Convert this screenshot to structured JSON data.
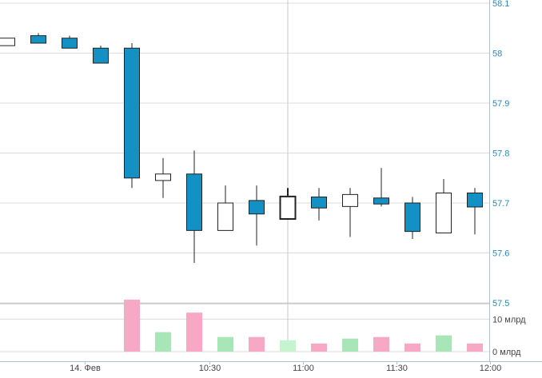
{
  "colors": {
    "up_fill": "#ffffff",
    "down_fill": "#1390c4",
    "candle_stroke": "#222222",
    "wick": "#222222",
    "vol_down": "#f7a8c4",
    "vol_up": "#a8e6b8",
    "vol_up_light": "#c4f5d0",
    "price_axis_text": "#2f86b8",
    "grid": "#dcdcdc",
    "axis_line": "#a9c4d6",
    "crosshair": "#c8c8c8"
  },
  "chart_data": {
    "type": "candlestick",
    "price_axis": {
      "ylim": [
        57.5,
        58.1
      ],
      "ticks": [
        "58.1",
        "58",
        "57.9",
        "57.8",
        "57.7",
        "57.6",
        "57.5"
      ],
      "tick_values": [
        58.1,
        58.0,
        57.9,
        57.8,
        57.7,
        57.6,
        57.5
      ]
    },
    "volume_axis": {
      "ylim": [
        0,
        15
      ],
      "unit": "млрд",
      "ticks": [
        "10 млрд",
        "0 млрд"
      ],
      "tick_values": [
        10,
        0
      ]
    },
    "time_axis": {
      "labels": [
        "14. Фев",
        "10:30",
        "11:00",
        "11:30",
        "12:00"
      ],
      "positions_in_candle_index": [
        2.5,
        6.5,
        9.5,
        12.5,
        15.5
      ]
    },
    "candles": [
      {
        "open": 58.015,
        "high": 58.03,
        "low": 58.015,
        "close": 58.03,
        "volume": 0
      },
      {
        "open": 58.035,
        "high": 58.04,
        "low": 58.02,
        "close": 58.02,
        "volume": 0
      },
      {
        "open": 58.03,
        "high": 58.035,
        "low": 58.01,
        "close": 58.01,
        "volume": 0
      },
      {
        "open": 58.01,
        "high": 58.015,
        "low": 57.98,
        "close": 57.98,
        "volume": 0
      },
      {
        "open": 58.01,
        "high": 58.02,
        "low": 57.73,
        "close": 57.75,
        "volume": 16
      },
      {
        "open": 57.745,
        "high": 57.79,
        "low": 57.71,
        "close": 57.758,
        "volume": 6
      },
      {
        "open": 57.758,
        "high": 57.805,
        "low": 57.58,
        "close": 57.645,
        "volume": 12
      },
      {
        "open": 57.645,
        "high": 57.735,
        "low": 57.645,
        "close": 57.7,
        "volume": 4.5
      },
      {
        "open": 57.705,
        "high": 57.735,
        "low": 57.615,
        "close": 57.678,
        "volume": 4.5
      },
      {
        "open": 57.668,
        "high": 57.73,
        "low": 57.668,
        "close": 57.713,
        "volume": 3.5,
        "highlight": true
      },
      {
        "open": 57.712,
        "high": 57.73,
        "low": 57.665,
        "close": 57.69,
        "volume": 2.5
      },
      {
        "open": 57.693,
        "high": 57.73,
        "low": 57.632,
        "close": 57.717,
        "volume": 4
      },
      {
        "open": 57.71,
        "high": 57.77,
        "low": 57.693,
        "close": 57.698,
        "volume": 4.5
      },
      {
        "open": 57.7,
        "high": 57.712,
        "low": 57.628,
        "close": 57.643,
        "volume": 2.5
      },
      {
        "open": 57.64,
        "high": 57.748,
        "low": 57.64,
        "close": 57.72,
        "volume": 5
      },
      {
        "open": 57.72,
        "high": 57.73,
        "low": 57.637,
        "close": 57.692,
        "volume": 2.5
      }
    ],
    "crosshair_at_candle_index": 9
  }
}
